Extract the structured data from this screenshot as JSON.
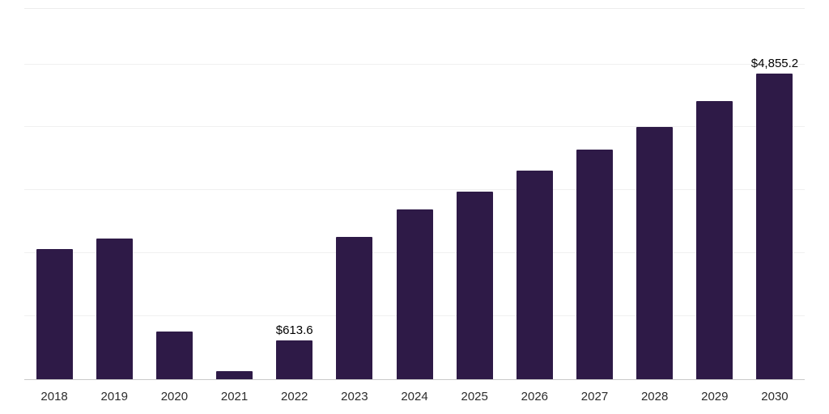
{
  "chart_data": {
    "type": "bar",
    "title": "",
    "xlabel": "",
    "ylabel": "",
    "categories": [
      "2018",
      "2019",
      "2020",
      "2021",
      "2022",
      "2023",
      "2024",
      "2025",
      "2026",
      "2027",
      "2028",
      "2029",
      "2030"
    ],
    "values": [
      2070,
      2237,
      754,
      128,
      613.6,
      2262,
      2697,
      2978,
      3310,
      3642,
      4000,
      4422,
      4855.2
    ],
    "value_labels": [
      "",
      "",
      "",
      "",
      "$613.6",
      "",
      "",
      "",
      "",
      "",
      "",
      "",
      "$4,855.2"
    ],
    "ylim": [
      0,
      5880
    ],
    "gridline_step": 1000,
    "grid": "horizontal",
    "legend": "none",
    "bar_color": "#2e1a47",
    "background_color": "#ffffff",
    "gridline_color": "#f0f0f0",
    "axis_line_color": "#c9c9c9",
    "tick_label_color": "#2b2b2b",
    "value_label_color": "#000000"
  }
}
